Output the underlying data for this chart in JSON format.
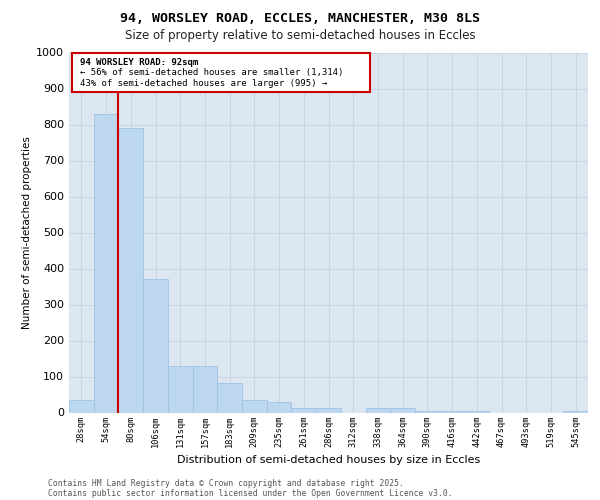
{
  "title_line1": "94, WORSLEY ROAD, ECCLES, MANCHESTER, M30 8LS",
  "title_line2": "Size of property relative to semi-detached houses in Eccles",
  "xlabel": "Distribution of semi-detached houses by size in Eccles",
  "ylabel": "Number of semi-detached properties",
  "categories": [
    "28sqm",
    "54sqm",
    "80sqm",
    "106sqm",
    "131sqm",
    "157sqm",
    "183sqm",
    "209sqm",
    "235sqm",
    "261sqm",
    "286sqm",
    "312sqm",
    "338sqm",
    "364sqm",
    "390sqm",
    "416sqm",
    "442sqm",
    "467sqm",
    "493sqm",
    "519sqm",
    "545sqm"
  ],
  "values": [
    35,
    830,
    790,
    370,
    128,
    128,
    83,
    35,
    30,
    13,
    13,
    0,
    13,
    13,
    5,
    5,
    5,
    0,
    0,
    0,
    5
  ],
  "bar_color": "#bdd7ee",
  "bar_edge_color": "#9dc3e6",
  "grid_color": "#c8d4e3",
  "background_color": "#dce6f1",
  "vline_color": "#cc0000",
  "vline_x_index": 2,
  "annotation_title": "94 WORSLEY ROAD: 92sqm",
  "annotation_line1": "← 56% of semi-detached houses are smaller (1,314)",
  "annotation_line2": "43% of semi-detached houses are larger (995) →",
  "annotation_box_color": "#cc0000",
  "ylim": [
    0,
    1000
  ],
  "yticks": [
    0,
    100,
    200,
    300,
    400,
    500,
    600,
    700,
    800,
    900,
    1000
  ],
  "footer_line1": "Contains HM Land Registry data © Crown copyright and database right 2025.",
  "footer_line2": "Contains public sector information licensed under the Open Government Licence v3.0."
}
